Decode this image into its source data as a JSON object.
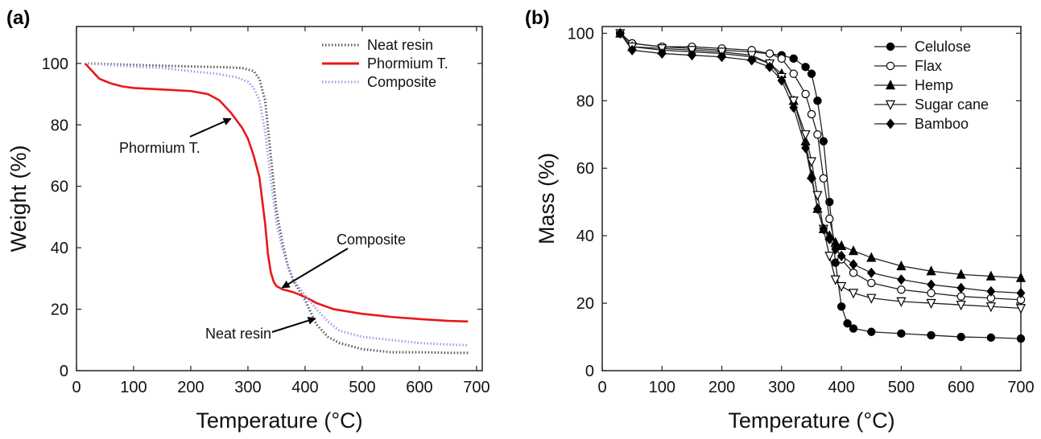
{
  "panels": {
    "a_label": "(a)",
    "b_label": "(b)"
  },
  "chart_data": [
    {
      "type": "line",
      "panel": "(a)",
      "xlabel": "Temperature (°C)",
      "ylabel": "Weight (%)",
      "xlim": [
        0,
        710
      ],
      "ylim": [
        0,
        112
      ],
      "xticks": [
        0,
        100,
        200,
        300,
        400,
        500,
        600,
        700
      ],
      "yticks": [
        0,
        20,
        40,
        60,
        80,
        100
      ],
      "grid": false,
      "legend_position": "top-right",
      "series": [
        {
          "name": "Neat resin",
          "color": "#555555",
          "style": "dotted",
          "x": [
            20,
            100,
            200,
            250,
            290,
            310,
            320,
            330,
            340,
            350,
            360,
            370,
            380,
            390,
            400,
            410,
            420,
            440,
            460,
            500,
            550,
            600,
            650,
            685
          ],
          "y": [
            100,
            99.5,
            99,
            98.8,
            98.5,
            97.5,
            95,
            88,
            70,
            52,
            42,
            34,
            29,
            26,
            23,
            19,
            15,
            11,
            9,
            7,
            6,
            6,
            5.8,
            5.8
          ]
        },
        {
          "name": "Phormium T.",
          "color": "#e8171a",
          "style": "solid",
          "x": [
            15,
            25,
            40,
            60,
            80,
            100,
            150,
            200,
            230,
            250,
            270,
            290,
            300,
            310,
            320,
            330,
            335,
            340,
            345,
            350,
            360,
            380,
            400,
            420,
            450,
            500,
            550,
            600,
            650,
            685
          ],
          "y": [
            100,
            98,
            95,
            93.5,
            92.5,
            92,
            91.5,
            91,
            90,
            88,
            84,
            79,
            75.5,
            70,
            63,
            48,
            38,
            32,
            29,
            27.5,
            26.5,
            25.5,
            24,
            22,
            20,
            18.5,
            17.5,
            16.8,
            16.2,
            16
          ]
        },
        {
          "name": "Composite",
          "color": "#9a9ee8",
          "style": "dotted",
          "x": [
            20,
            100,
            150,
            200,
            250,
            280,
            300,
            310,
            320,
            330,
            340,
            350,
            360,
            370,
            380,
            390,
            400,
            420,
            440,
            460,
            500,
            550,
            600,
            650,
            685
          ],
          "y": [
            100,
            99,
            98.5,
            97.5,
            96.5,
            95.5,
            94,
            92,
            88,
            78,
            62,
            48,
            40,
            34,
            29.5,
            27,
            24.5,
            20,
            16,
            13,
            11,
            10,
            9,
            8.5,
            8.3
          ]
        }
      ],
      "annotations": [
        {
          "text": "Phormium T.",
          "target": [
            270,
            82
          ]
        },
        {
          "text": "Composite",
          "target": [
            360,
            27
          ]
        },
        {
          "text": "Neat resin",
          "target": [
            418,
            17
          ]
        }
      ]
    },
    {
      "type": "line",
      "panel": "(b)",
      "xlabel": "Temperature (°C)",
      "ylabel": "Mass (%)",
      "xlim": [
        0,
        700
      ],
      "ylim": [
        0,
        102
      ],
      "xticks": [
        0,
        100,
        200,
        300,
        400,
        500,
        600,
        700
      ],
      "yticks": [
        0,
        20,
        40,
        60,
        80,
        100
      ],
      "grid": false,
      "legend_position": "top-right",
      "series": [
        {
          "name": "Celulose",
          "marker": "filled-circle",
          "x": [
            30,
            50,
            100,
            150,
            200,
            250,
            300,
            320,
            340,
            350,
            360,
            370,
            380,
            390,
            400,
            410,
            420,
            450,
            500,
            550,
            600,
            650,
            700
          ],
          "y": [
            100,
            97,
            96,
            95.5,
            95,
            94.5,
            93.5,
            92.5,
            90,
            88,
            80,
            68,
            50,
            32,
            19,
            14,
            12.5,
            11.5,
            11,
            10.5,
            10,
            9.8,
            9.5
          ]
        },
        {
          "name": "Flax",
          "marker": "open-circle",
          "x": [
            30,
            50,
            100,
            150,
            200,
            250,
            280,
            300,
            320,
            340,
            350,
            360,
            370,
            380,
            390,
            400,
            420,
            450,
            500,
            550,
            600,
            650,
            700
          ],
          "y": [
            100,
            97,
            96,
            96,
            95.5,
            95,
            94,
            92.5,
            88,
            82,
            76,
            70,
            57,
            45,
            37,
            33,
            29,
            26,
            24,
            23,
            22,
            21.5,
            21
          ]
        },
        {
          "name": "Hemp",
          "marker": "filled-triangle",
          "x": [
            30,
            50,
            100,
            150,
            200,
            250,
            280,
            300,
            320,
            340,
            350,
            360,
            370,
            380,
            390,
            400,
            420,
            450,
            500,
            550,
            600,
            650,
            700
          ],
          "y": [
            100,
            96,
            95,
            94.5,
            94,
            93,
            91,
            88,
            80,
            68,
            58,
            48,
            42,
            40,
            38,
            37,
            35.5,
            33.5,
            31,
            29.5,
            28.5,
            28,
            27.5
          ]
        },
        {
          "name": "Sugar cane",
          "marker": "open-triangle-down",
          "x": [
            30,
            50,
            100,
            150,
            200,
            250,
            280,
            300,
            320,
            340,
            350,
            360,
            370,
            380,
            390,
            400,
            420,
            450,
            500,
            550,
            600,
            650,
            700
          ],
          "y": [
            100,
            96,
            95.5,
            95,
            94.5,
            93.5,
            91,
            87,
            80,
            70,
            62,
            52,
            42,
            34,
            27,
            25,
            23,
            21.5,
            20.5,
            20,
            19.5,
            19,
            18.5
          ]
        },
        {
          "name": "Bamboo",
          "marker": "filled-diamond",
          "x": [
            30,
            50,
            100,
            150,
            200,
            250,
            280,
            300,
            320,
            340,
            350,
            360,
            370,
            380,
            390,
            400,
            420,
            450,
            500,
            550,
            600,
            650,
            700
          ],
          "y": [
            100,
            95,
            94,
            93.5,
            93,
            92,
            90,
            86,
            78,
            66,
            57,
            48,
            42,
            39,
            36,
            34,
            31.5,
            29,
            27,
            25.5,
            24.5,
            23.5,
            23
          ]
        }
      ]
    }
  ]
}
